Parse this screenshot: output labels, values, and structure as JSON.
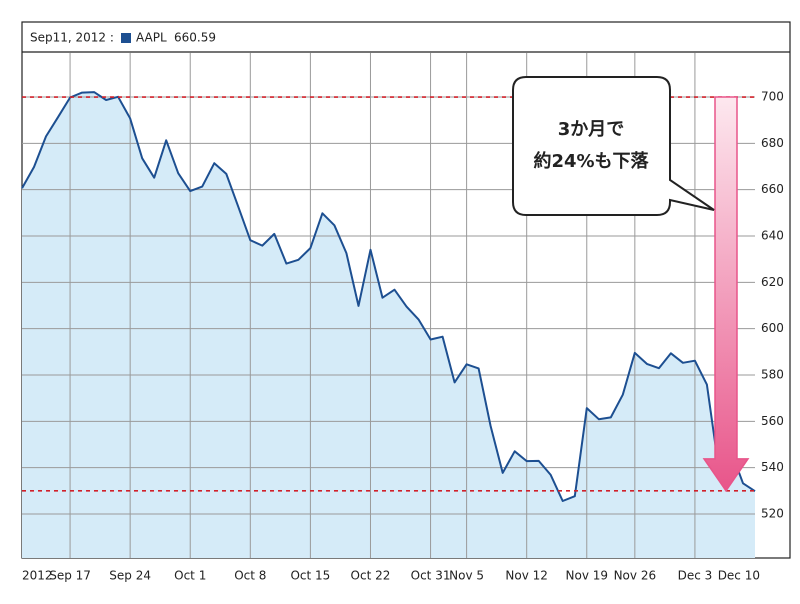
{
  "chart_data": {
    "type": "line",
    "header_date": "Sep11, 2012 :",
    "header_value": 660.59,
    "annotation": [
      "3か月で",
      "約24%も下落"
    ],
    "hlines": [
      700,
      530
    ],
    "arrow": {
      "from": 700,
      "to": 530,
      "color": "#e8558a"
    },
    "categories": [
      "2012",
      null,
      null,
      null,
      "Sep 17",
      null,
      null,
      null,
      null,
      "Sep 24",
      null,
      null,
      null,
      null,
      "Oct 1",
      null,
      null,
      null,
      null,
      "Oct 8",
      null,
      null,
      null,
      null,
      "Oct 15",
      null,
      null,
      null,
      null,
      "Oct 22",
      null,
      null,
      null,
      null,
      "Oct 31",
      null,
      null,
      "Nov 5",
      null,
      null,
      null,
      null,
      "Nov 12",
      null,
      null,
      null,
      null,
      "Nov 19",
      null,
      null,
      null,
      "Nov 26",
      null,
      null,
      null,
      null,
      "Dec 3",
      null,
      null,
      null,
      null,
      "Dec 10"
    ],
    "series": [
      {
        "name": "AAPL",
        "color": "#1d4f91",
        "fill": "#d5ebf8",
        "values": [
          660.59,
          669.79,
          682.98,
          691.28,
          699.78,
          701.91,
          702.1,
          698.7,
          700.09,
          690.79,
          673.54,
          665.18,
          681.32,
          667.1,
          659.39,
          661.31,
          671.45,
          666.8,
          652.59,
          638.17,
          635.85,
          640.91,
          628.1,
          629.71,
          634.76,
          649.79,
          644.61,
          632.64,
          609.84,
          634.03,
          613.36,
          616.83,
          609.54,
          604,
          595.32,
          596.54,
          576.8,
          584.62,
          582.85,
          558,
          537.75,
          547.06,
          542.83,
          542.9,
          536.88,
          525.62,
          527.68,
          565.73,
          560.91,
          561.7,
          571.5,
          589.53,
          584.78,
          582.94,
          589.36,
          585.28,
          586.19,
          575.85,
          538.79,
          547.24,
          533.25,
          529.82
        ]
      }
    ],
    "ylim": [
      501,
      719
    ],
    "yticks": [
      520,
      540,
      560,
      580,
      600,
      620,
      640,
      660,
      680,
      700
    ],
    "grid": true
  }
}
